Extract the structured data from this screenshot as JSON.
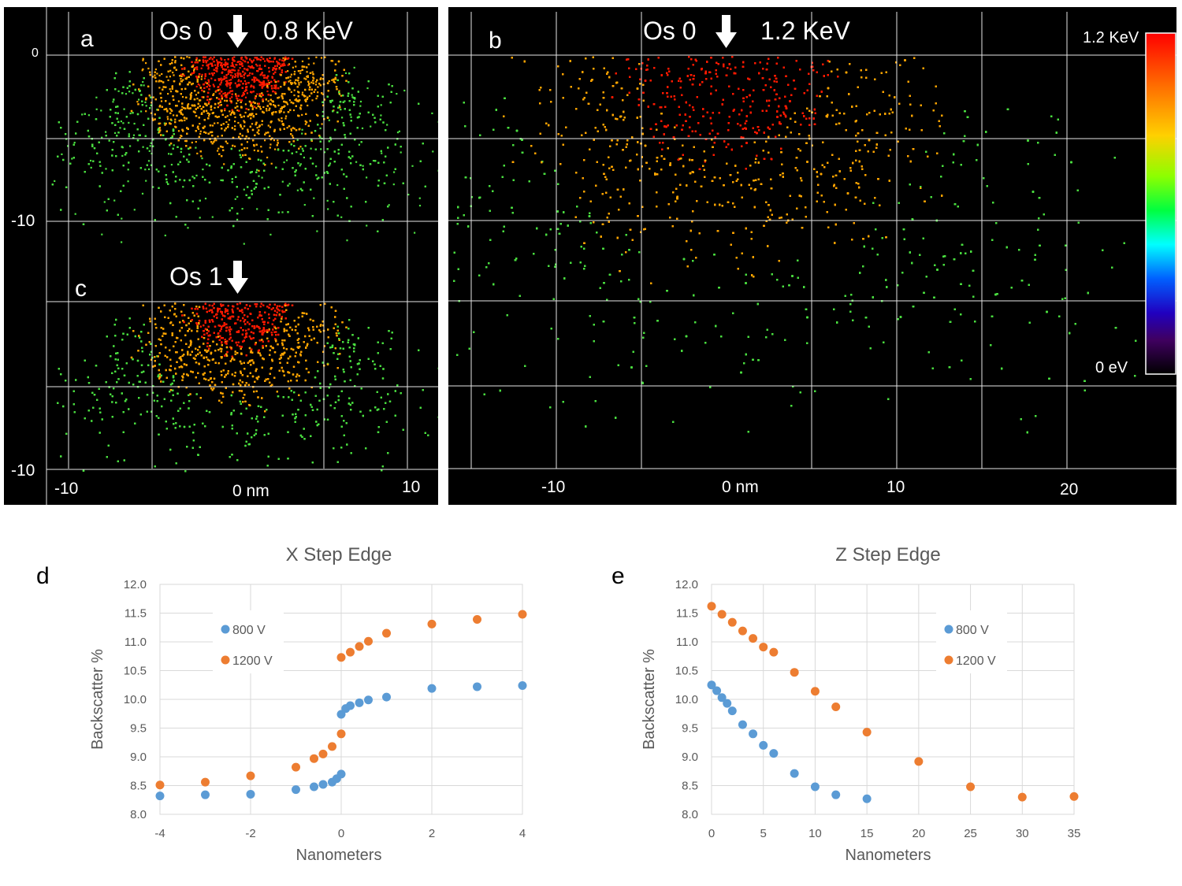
{
  "colors": {
    "blue": "#5b9bd5",
    "orange": "#ed7d31",
    "hot": "#ff1a00",
    "warm": "#ffa500",
    "cool": "#4ade40",
    "panel_bg": "#000000"
  },
  "icons": {
    "beam_arrow": "down-arrow-icon",
    "colorbar": "energy-colorbar"
  },
  "panel_a": {
    "letter": "a",
    "title_left": "Os 0",
    "title_right": "0.8 KeV",
    "y_ticks": [
      "0",
      "-10"
    ],
    "x_ticks": [
      "-10",
      "0 nm",
      "10"
    ]
  },
  "panel_c": {
    "letter": "c",
    "title_left": "Os 1",
    "y_ticks": [
      "-10"
    ]
  },
  "panel_b": {
    "letter": "b",
    "title_left": "Os 0",
    "title_right": "1.2 KeV",
    "x_ticks": [
      "-10",
      "0 nm",
      "10",
      "20"
    ],
    "colorbar_top": "1.2 KeV",
    "colorbar_bottom": "0 eV"
  },
  "letters": {
    "d": "d",
    "e": "e"
  },
  "chart_data": [
    {
      "type": "scatter",
      "title": "X Step Edge",
      "xlabel": "Nanometers",
      "ylabel": "Backscatter  %",
      "xlim": [
        -4,
        4
      ],
      "ylim": [
        8.0,
        12.0
      ],
      "xticks": [
        "-4",
        "-2",
        "0",
        "2",
        "4"
      ],
      "yticks": [
        "12.0",
        "11.5",
        "11.0",
        "10.5",
        "10.0",
        "9.5",
        "9.0",
        "8.5",
        "8.0"
      ],
      "legend_position": "upper-left",
      "series": [
        {
          "name": "800 V",
          "x": [
            -4,
            -3,
            -2,
            -1,
            -0.6,
            -0.4,
            -0.2,
            -0.1,
            0,
            0,
            0.1,
            0.2,
            0.4,
            0.6,
            1,
            2,
            3,
            4
          ],
          "y": [
            8.32,
            8.34,
            8.35,
            8.43,
            8.48,
            8.52,
            8.56,
            8.62,
            8.7,
            9.74,
            9.84,
            9.89,
            9.94,
            9.99,
            10.04,
            10.19,
            10.22,
            10.24
          ]
        },
        {
          "name": "1200 V",
          "x": [
            -4,
            -3,
            -2,
            -1,
            -0.6,
            -0.4,
            -0.2,
            0,
            0,
            0.2,
            0.4,
            0.6,
            1,
            2,
            3,
            4
          ],
          "y": [
            8.51,
            8.56,
            8.67,
            8.82,
            8.97,
            9.05,
            9.18,
            9.4,
            10.73,
            10.82,
            10.92,
            11.01,
            11.15,
            11.31,
            11.39,
            11.48
          ]
        }
      ]
    },
    {
      "type": "scatter",
      "title": "Z Step Edge",
      "xlabel": "Nanometers",
      "ylabel": "Backscatter  %",
      "xlim": [
        0,
        35
      ],
      "ylim": [
        8.0,
        12.0
      ],
      "xticks": [
        "0",
        "5",
        "10",
        "15",
        "20",
        "25",
        "30",
        "35"
      ],
      "yticks": [
        "12.0",
        "11.5",
        "11.0",
        "10.5",
        "10.0",
        "9.5",
        "9.0",
        "8.5",
        "8.0"
      ],
      "legend_position": "upper-right",
      "series": [
        {
          "name": "800 V",
          "x": [
            0,
            0.5,
            1,
            1.5,
            2,
            3,
            4,
            5,
            6,
            8,
            10,
            12,
            15
          ],
          "y": [
            10.25,
            10.15,
            10.03,
            9.93,
            9.8,
            9.56,
            9.4,
            9.2,
            9.06,
            8.71,
            8.48,
            8.34,
            8.27
          ]
        },
        {
          "name": "1200 V",
          "x": [
            0,
            1,
            2,
            3,
            4,
            5,
            6,
            8,
            10,
            12,
            15,
            20,
            25,
            30,
            35
          ],
          "y": [
            11.62,
            11.48,
            11.34,
            11.19,
            11.06,
            10.91,
            10.82,
            10.47,
            10.14,
            9.87,
            9.43,
            8.92,
            8.48,
            8.3,
            8.31
          ]
        }
      ]
    }
  ]
}
